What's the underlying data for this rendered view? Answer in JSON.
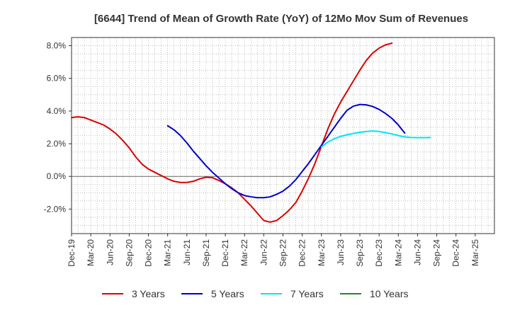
{
  "chart_data": {
    "type": "line",
    "title": "[6644]  Trend of Mean of Growth Rate (YoY) of 12Mo Mov Sum of Revenues",
    "xlabel": "",
    "ylabel": "",
    "ylim": [
      -3.5,
      8.5
    ],
    "yticks": [
      -2.0,
      0.0,
      2.0,
      4.0,
      6.0,
      8.0
    ],
    "ytick_labels": [
      "-2.0%",
      "0.0%",
      "2.0%",
      "4.0%",
      "6.0%",
      "8.0%"
    ],
    "x_categories": [
      "Dec-19",
      "Mar-20",
      "Jun-20",
      "Sep-20",
      "Dec-20",
      "Mar-21",
      "Jun-21",
      "Sep-21",
      "Dec-21",
      "Mar-22",
      "Jun-22",
      "Sep-22",
      "Dec-22",
      "Mar-23",
      "Jun-23",
      "Sep-23",
      "Dec-23",
      "Mar-24",
      "Jun-24",
      "Sep-24",
      "Dec-24",
      "Mar-25"
    ],
    "grid": "dotted",
    "legend_position": "bottom",
    "series": [
      {
        "name": "3 Years",
        "color": "#dd0000",
        "start_index": 0,
        "values": [
          3.6,
          3.65,
          3.6,
          3.45,
          3.3,
          3.15,
          2.9,
          2.6,
          2.2,
          1.75,
          1.2,
          0.75,
          0.45,
          0.25,
          0.05,
          -0.15,
          -0.3,
          -0.37,
          -0.37,
          -0.3,
          -0.15,
          -0.05,
          -0.08,
          -0.25,
          -0.45,
          -0.7,
          -1.0,
          -1.4,
          -1.8,
          -2.25,
          -2.7,
          -2.8,
          -2.7,
          -2.4,
          -2.05,
          -1.6,
          -0.9,
          -0.1,
          0.8,
          1.85,
          2.9,
          3.8,
          4.55,
          5.2,
          5.85,
          6.5,
          7.1,
          7.55,
          7.85,
          8.05,
          8.15
        ]
      },
      {
        "name": "5 Years",
        "color": "#0000cc",
        "start_index": 15,
        "values": [
          3.1,
          2.85,
          2.5,
          2.05,
          1.55,
          1.1,
          0.65,
          0.25,
          -0.1,
          -0.45,
          -0.75,
          -1.0,
          -1.17,
          -1.25,
          -1.3,
          -1.3,
          -1.25,
          -1.1,
          -0.9,
          -0.6,
          -0.2,
          0.3,
          0.8,
          1.35,
          1.9,
          2.45,
          3.0,
          3.55,
          4.05,
          4.3,
          4.4,
          4.38,
          4.28,
          4.1,
          3.85,
          3.55,
          3.15,
          2.65
        ]
      },
      {
        "name": "7 Years",
        "color": "#00e5ee",
        "start_index": 39,
        "values": [
          1.8,
          2.1,
          2.3,
          2.45,
          2.55,
          2.63,
          2.7,
          2.75,
          2.78,
          2.75,
          2.68,
          2.6,
          2.5,
          2.42,
          2.38,
          2.37,
          2.37,
          2.38
        ]
      },
      {
        "name": "10 Years",
        "color": "#228b22",
        "start_index": 0,
        "values": []
      }
    ]
  }
}
